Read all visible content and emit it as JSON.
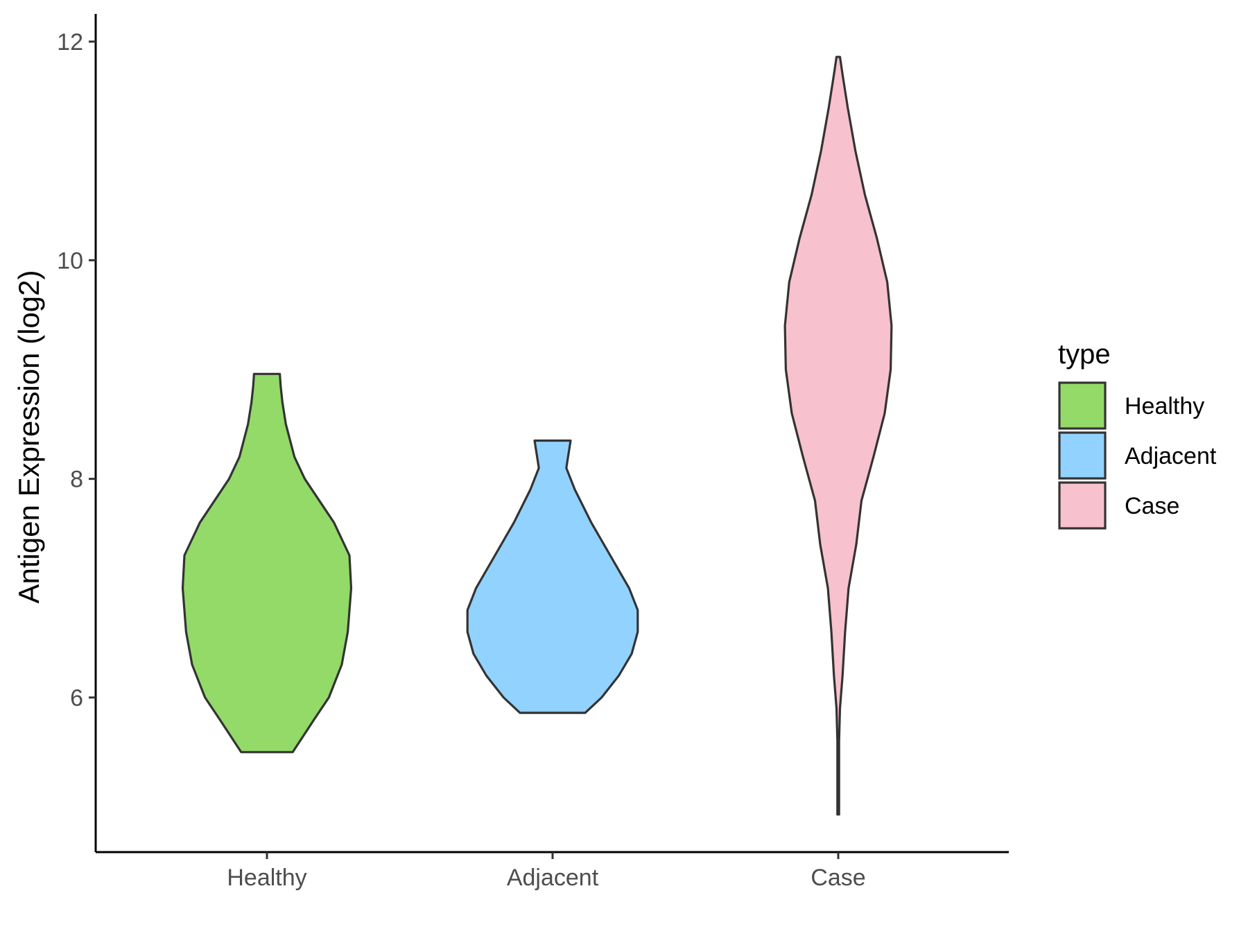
{
  "chart_data": {
    "type": "violin",
    "title": "",
    "xlabel": "",
    "ylabel": "Antigen Expression (log2)",
    "ylim": [
      4.5,
      12.2
    ],
    "yticks": [
      6,
      8,
      10,
      12
    ],
    "categories": [
      "Healthy",
      "Adjacent",
      "Case"
    ],
    "grid": false,
    "legend": {
      "title": "type",
      "position": "right",
      "entries": [
        "Healthy",
        "Adjacent",
        "Case"
      ]
    },
    "series": [
      {
        "name": "Healthy",
        "color": "#93DA69",
        "min": 5.5,
        "max": 8.96,
        "profile": [
          [
            5.5,
            0.3
          ],
          [
            5.8,
            0.55
          ],
          [
            6.0,
            0.72
          ],
          [
            6.3,
            0.87
          ],
          [
            6.6,
            0.94
          ],
          [
            7.0,
            0.98
          ],
          [
            7.3,
            0.96
          ],
          [
            7.6,
            0.78
          ],
          [
            8.0,
            0.44
          ],
          [
            8.2,
            0.32
          ],
          [
            8.5,
            0.22
          ],
          [
            8.7,
            0.18
          ],
          [
            8.85,
            0.16
          ],
          [
            8.96,
            0.15
          ]
        ]
      },
      {
        "name": "Adjacent",
        "color": "#92D2FE",
        "min": 5.86,
        "max": 8.35,
        "profile": [
          [
            5.86,
            0.38
          ],
          [
            6.0,
            0.57
          ],
          [
            6.2,
            0.77
          ],
          [
            6.4,
            0.92
          ],
          [
            6.6,
            0.99
          ],
          [
            6.8,
            0.99
          ],
          [
            7.0,
            0.89
          ],
          [
            7.3,
            0.67
          ],
          [
            7.6,
            0.45
          ],
          [
            7.9,
            0.26
          ],
          [
            8.1,
            0.16
          ],
          [
            8.35,
            0.21
          ]
        ]
      },
      {
        "name": "Case",
        "color": "#F7C1CD",
        "min": 4.93,
        "max": 11.86,
        "profile": [
          [
            4.93,
            0.01
          ],
          [
            5.3,
            0.01
          ],
          [
            5.6,
            0.01
          ],
          [
            5.9,
            0.02
          ],
          [
            6.2,
            0.05
          ],
          [
            6.6,
            0.08
          ],
          [
            7.0,
            0.12
          ],
          [
            7.4,
            0.21
          ],
          [
            7.8,
            0.27
          ],
          [
            8.2,
            0.41
          ],
          [
            8.6,
            0.54
          ],
          [
            9.0,
            0.61
          ],
          [
            9.4,
            0.62
          ],
          [
            9.8,
            0.57
          ],
          [
            10.2,
            0.45
          ],
          [
            10.6,
            0.31
          ],
          [
            11.0,
            0.2
          ],
          [
            11.4,
            0.11
          ],
          [
            11.7,
            0.05
          ],
          [
            11.86,
            0.02
          ]
        ]
      }
    ]
  }
}
